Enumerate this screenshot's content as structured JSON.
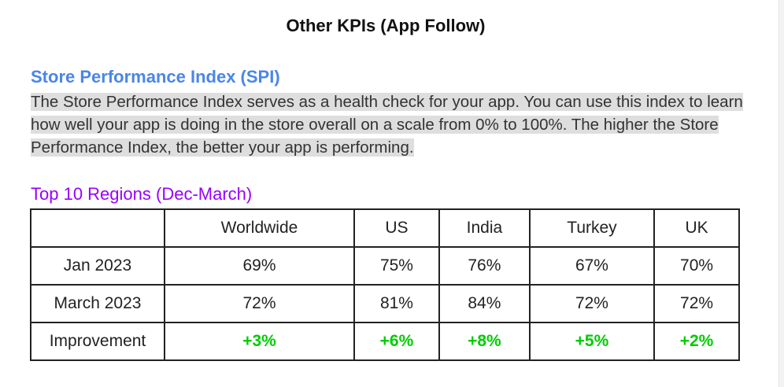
{
  "page": {
    "title": "Other KPIs (App Follow)"
  },
  "spi": {
    "heading": "Store Performance Index (SPI)",
    "description": "The Store Performance Index serves as a health check for your app. You can use this index to learn how well your app is doing in the store overall on a scale from 0% to 100%. The higher the Store Performance Index, the better your app is performing.",
    "highlight_color": "#dedede"
  },
  "regions": {
    "subheading": "Top 10 Regions (Dec-March)",
    "columns": [
      "",
      "Worldwide",
      "US",
      "India",
      "Turkey",
      "UK"
    ],
    "rows": [
      {
        "label": "Jan 2023",
        "values": [
          "69%",
          "75%",
          "76%",
          "67%",
          "70%"
        ]
      },
      {
        "label": "March 2023",
        "values": [
          "72%",
          "81%",
          "84%",
          "72%",
          "72%"
        ]
      },
      {
        "label": "Improvement",
        "values": [
          "+3%",
          "+6%",
          "+8%",
          "+5%",
          "+2%"
        ]
      }
    ]
  },
  "colors": {
    "heading_blue": "#4a86e8",
    "subheading_purple": "#9900ff",
    "improvement_green": "#00cc00",
    "text": "#222222"
  }
}
